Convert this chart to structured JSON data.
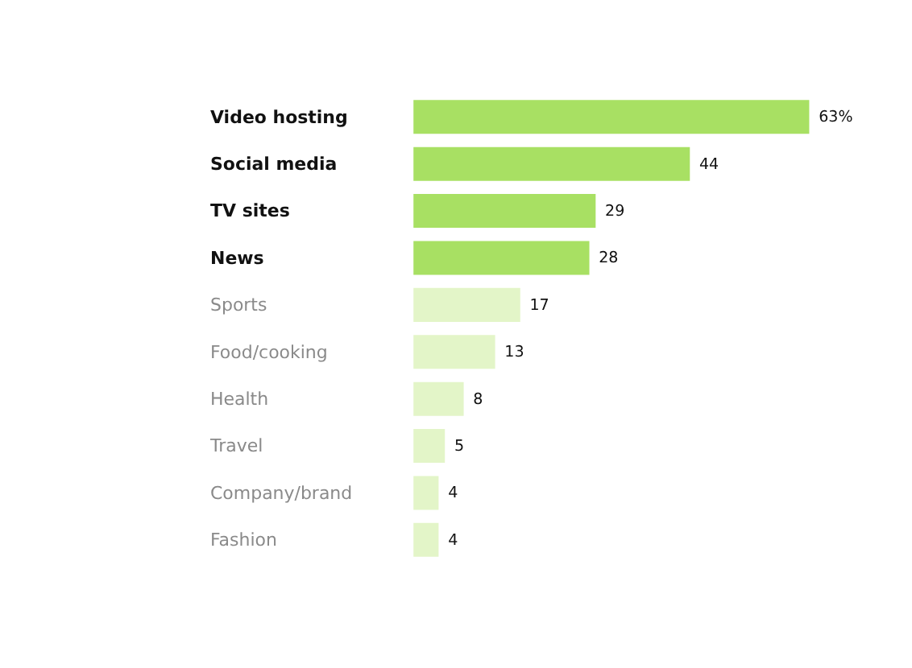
{
  "chart_data": {
    "type": "bar",
    "orientation": "horizontal",
    "categories": [
      "Video hosting",
      "Social media",
      "TV sites",
      "News",
      "Sports",
      "Food/cooking",
      "Health",
      "Travel",
      "Company/brand",
      "Fashion"
    ],
    "values": [
      63,
      44,
      29,
      28,
      17,
      13,
      8,
      5,
      4,
      4
    ],
    "value_labels": [
      "63%",
      "44",
      "29",
      "28",
      "17",
      "13",
      "8",
      "5",
      "4",
      "4"
    ],
    "colors": [
      "#a8e063",
      "#a8e063",
      "#a8e063",
      "#a8e063",
      "#e3f5c8",
      "#e3f5c8",
      "#e3f5c8",
      "#e3f5c8",
      "#e3f5c8",
      "#e3f5c8"
    ],
    "xlim": [
      0,
      63
    ],
    "tick_labels": false
  }
}
